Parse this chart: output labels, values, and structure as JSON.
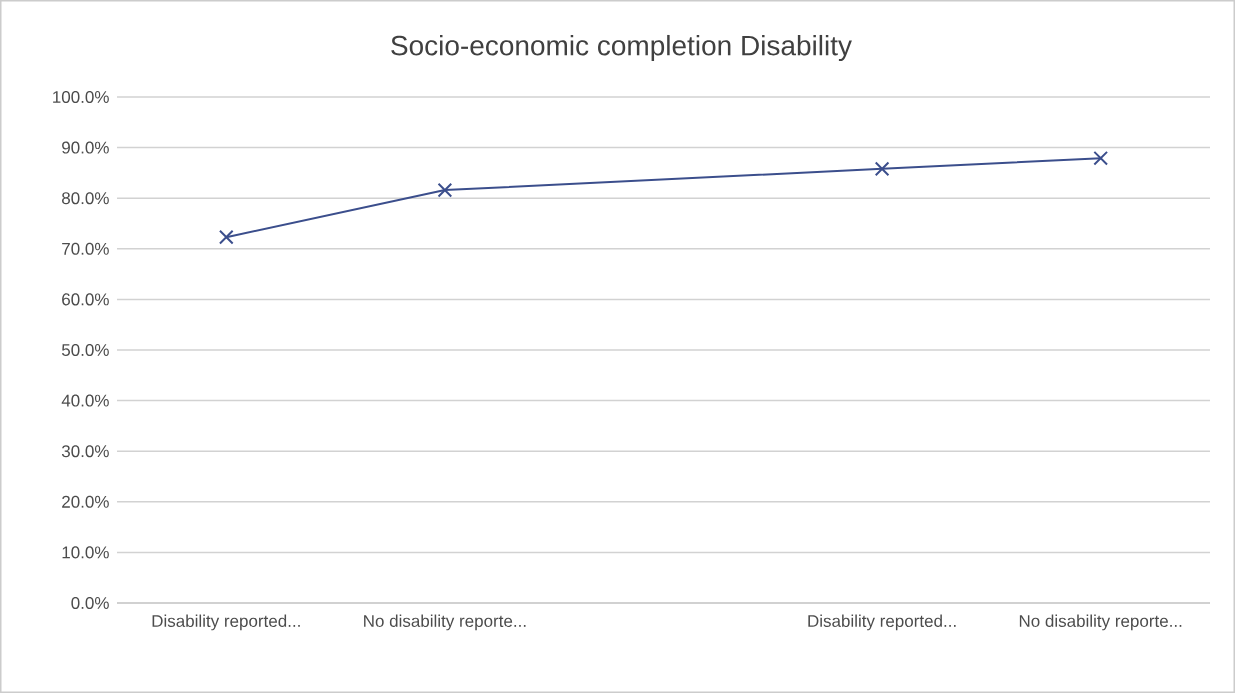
{
  "chart_data": {
    "type": "line",
    "title": "Socio-economic completion Disability",
    "categories": [
      "Disability reported...",
      "No disability reporte...",
      null,
      "Disability reported...",
      "No disability reporte..."
    ],
    "series": [
      {
        "color": "#3b4e8c",
        "values": [
          72.3,
          81.6,
          null,
          85.8,
          87.9
        ]
      }
    ],
    "ylim": [
      0,
      100
    ],
    "yticks": [
      {
        "value": 0,
        "label": "0.0%"
      },
      {
        "value": 10,
        "label": "10.0%"
      },
      {
        "value": 20,
        "label": "20.0%"
      },
      {
        "value": 30,
        "label": "30.0%"
      },
      {
        "value": 40,
        "label": "40.0%"
      },
      {
        "value": 50,
        "label": "50.0%"
      },
      {
        "value": 60,
        "label": "60.0%"
      },
      {
        "value": 70,
        "label": "70.0%"
      },
      {
        "value": 80,
        "label": "80.0%"
      },
      {
        "value": 90,
        "label": "90.0%"
      },
      {
        "value": 100,
        "label": "100.0%"
      }
    ],
    "grid": "y",
    "marker": "cross",
    "line_style": "solid"
  }
}
